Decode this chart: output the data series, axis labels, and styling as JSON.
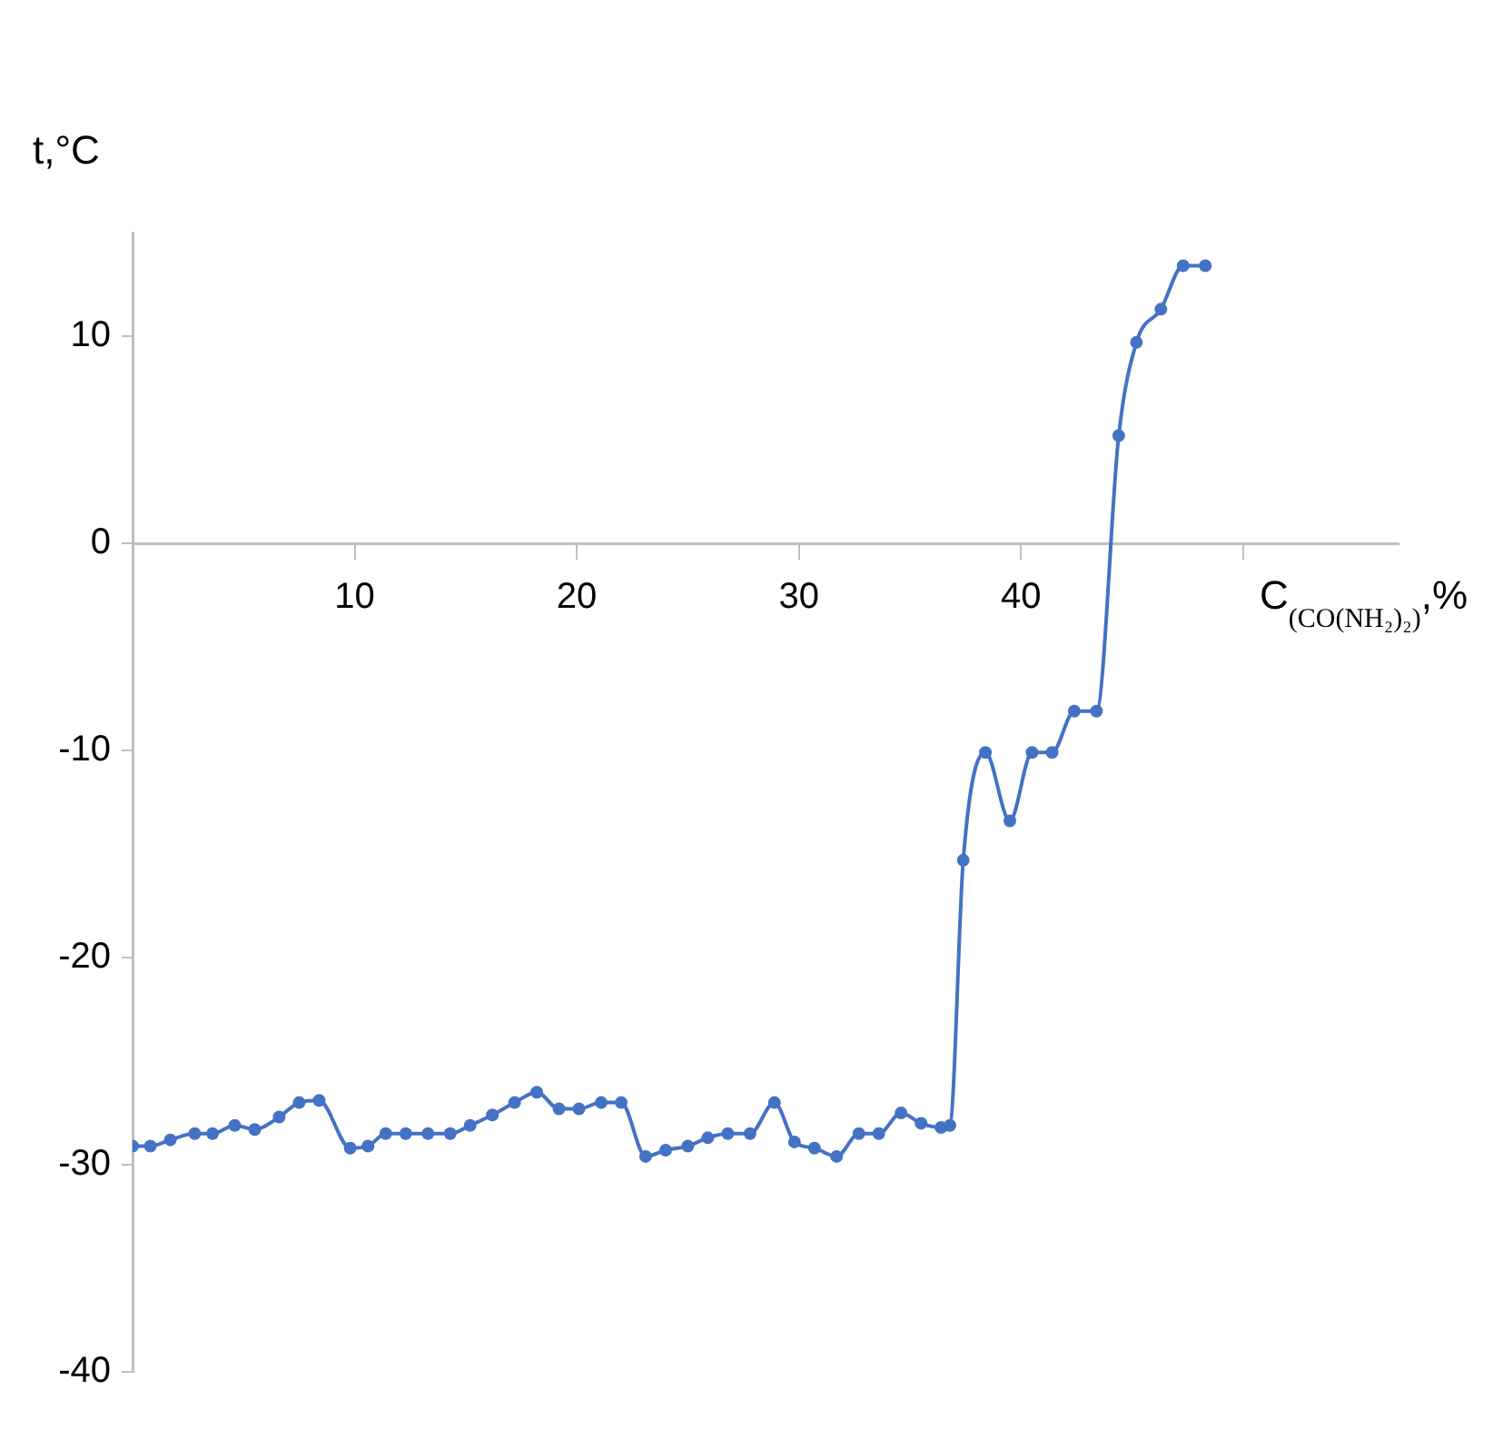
{
  "chart_data": {
    "type": "line",
    "xlabel": "C$_{(CO(NH₂)₂)}$,%",
    "ylabel": "t,°C",
    "x": [
      0,
      0.8,
      1.7,
      2.8,
      3.6,
      4.6,
      5.5,
      6.6,
      7.5,
      8.4,
      9.8,
      10.6,
      11.4,
      12.3,
      13.3,
      14.3,
      15.2,
      16.2,
      17.2,
      18.2,
      19.2,
      20.1,
      21.1,
      22.0,
      23.1,
      24.0,
      25.0,
      25.9,
      26.8,
      27.8,
      28.9,
      29.8,
      30.7,
      31.7,
      32.7,
      33.6,
      34.6,
      35.5,
      36.4,
      36.8,
      37.4,
      38.4,
      39.5,
      40.5,
      41.4,
      42.4,
      43.4,
      44.4,
      45.2,
      46.3,
      47.3,
      48.3
    ],
    "series": [
      {
        "color": "#4472c4",
        "values": [
          -29.1,
          -29.1,
          -28.8,
          -28.5,
          -28.5,
          -28.1,
          -28.3,
          -27.7,
          -27.0,
          -26.9,
          -29.2,
          -29.1,
          -28.5,
          -28.5,
          -28.5,
          -28.5,
          -28.1,
          -27.6,
          -27.0,
          -26.5,
          -27.3,
          -27.3,
          -27.0,
          -27.0,
          -29.6,
          -29.3,
          -29.1,
          -28.7,
          -28.5,
          -28.5,
          -27.0,
          -28.9,
          -29.2,
          -29.6,
          -28.5,
          -28.5,
          -27.5,
          -28.0,
          -28.2,
          -28.1,
          -15.3,
          -10.1,
          -13.4,
          -10.1,
          -10.1,
          -8.1,
          -8.1,
          5.2,
          9.7,
          11.3,
          13.4,
          13.4
        ]
      }
    ],
    "xlim": [
      0,
      57
    ],
    "xticks": [
      10,
      20,
      30,
      40,
      {
        "value": 50,
        "label": null
      }
    ],
    "ylim": [
      -40,
      15
    ],
    "yticks": [
      -40,
      -30,
      -20,
      -10,
      0,
      10
    ],
    "grid": false,
    "legend": false,
    "marker": "circle",
    "line_style": "solid"
  }
}
